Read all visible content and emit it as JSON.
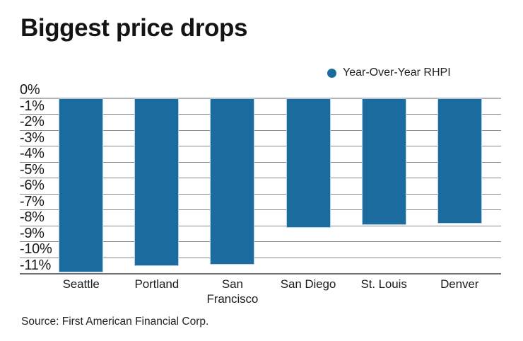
{
  "chart": {
    "title": "Biggest price drops",
    "legend_label": "Year-Over-Year RHPI",
    "source": "Source: First American Financial Corp.",
    "accent_color": "#1c6b9e"
  },
  "chart_data": {
    "type": "bar",
    "title": "Biggest price drops",
    "categories": [
      "Seattle",
      "Portland",
      "San Francisco",
      "San Diego",
      "St. Louis",
      "Denver"
    ],
    "series": [
      {
        "name": "Year-Over-Year RHPI",
        "values": [
          -10.9,
          -10.5,
          -10.4,
          -8.1,
          -7.9,
          -7.8
        ]
      }
    ],
    "xlabel": "",
    "ylabel": "",
    "ylim": [
      -11,
      0
    ],
    "ytick_labels": [
      "0%",
      "-1%",
      "-2%",
      "-3%",
      "-4%",
      "-5%",
      "-6%",
      "-7%",
      "-8%",
      "-9%",
      "-10%",
      "-11%"
    ],
    "grid": true,
    "legend_position": "top-right",
    "bar_color": "#1c6b9e",
    "gridline_color": "#8a8a8a",
    "source": "Source: First American Financial Corp."
  }
}
